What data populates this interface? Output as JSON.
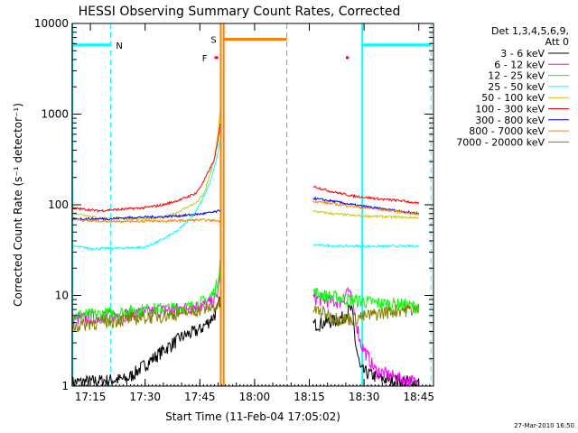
{
  "chart_data": {
    "type": "line",
    "title": "HESSI Observing Summary Count Rates, Corrected",
    "xlabel": "Start Time (11-Feb-04 17:05:02)",
    "ylabel": "Corrected Count Rate (s⁻¹ detector⁻¹)",
    "yscale": "log",
    "xlim": [
      5.0,
      104.0
    ],
    "ylim": [
      1,
      10000
    ],
    "x_units": "minutes after 17:05:02",
    "x_ticks": [
      {
        "label": "17:15",
        "value": 9.97
      },
      {
        "label": "17:30",
        "value": 24.97
      },
      {
        "label": "17:45",
        "value": 39.97
      },
      {
        "label": "18:00",
        "value": 54.97
      },
      {
        "label": "18:15",
        "value": 69.97
      },
      {
        "label": "18:30",
        "value": 84.97
      },
      {
        "label": "18:45",
        "value": 99.97
      }
    ],
    "y_ticks": [
      {
        "label": "1",
        "value": 1
      },
      {
        "label": "10",
        "value": 10
      },
      {
        "label": "100",
        "value": 100
      },
      {
        "label": "1000",
        "value": 1000
      },
      {
        "label": "10000",
        "value": 10000
      }
    ],
    "legend_header": [
      "Det 1,3,4,5,6,9,",
      "Att 0"
    ],
    "legend_position": "right",
    "series": [
      {
        "name": "3 - 6 keV",
        "color": "#000000",
        "x": [
          5,
          20,
          30,
          35,
          40,
          42,
          43.5,
          44.5,
          45,
          45.5
        ],
        "y": [
          1.1,
          1.2,
          2.5,
          3.5,
          4.2,
          5,
          5.8,
          6.5,
          7.5,
          9
        ],
        "x2": [
          71,
          74,
          76,
          78,
          79.5,
          80.5,
          81.5,
          82,
          82.6,
          84,
          90,
          100
        ],
        "y2": [
          4.8,
          5,
          5.2,
          5.5,
          5.8,
          6.8,
          7,
          5.5,
          3,
          1.5,
          1.2,
          1.1
        ]
      },
      {
        "name": "6 - 12 keV",
        "color": "#ff00ff",
        "x": [
          5,
          15,
          25,
          32,
          38,
          42,
          44,
          45,
          45.5
        ],
        "y": [
          5.5,
          6,
          6.5,
          7,
          7.5,
          8,
          9,
          11,
          20
        ],
        "x2": [
          71,
          74,
          77,
          79,
          80.5,
          81.5,
          82.5,
          84,
          88,
          95,
          100
        ],
        "y2": [
          9.5,
          9,
          8.5,
          8.7,
          12,
          9,
          6,
          3,
          1.5,
          1.2,
          1.1
        ]
      },
      {
        "name": "12 - 25 keV",
        "color": "#00ff00",
        "x": [
          5,
          12,
          18,
          25,
          32,
          38,
          42,
          44,
          45,
          45.5
        ],
        "y": [
          6,
          6.2,
          6.5,
          7,
          7.2,
          7.5,
          9,
          11,
          15,
          25
        ],
        "x2": [
          71,
          74,
          78,
          82,
          86,
          90,
          95,
          100
        ],
        "y2": [
          11,
          10,
          9.5,
          9,
          8.5,
          8.2,
          8,
          7.5
        ]
      },
      {
        "name": "25 - 50 keV",
        "color": "#00ffff",
        "x": [
          5,
          10,
          15,
          20,
          25,
          30,
          34,
          38,
          41,
          43,
          44.5,
          45.5
        ],
        "y": [
          35,
          33,
          33,
          33.5,
          34,
          42,
          52,
          75,
          120,
          190,
          310,
          500
        ],
        "x2": [
          71,
          78,
          86,
          94,
          100
        ],
        "y2": [
          36,
          35,
          35,
          35,
          35
        ]
      },
      {
        "name": "50 - 100 keV",
        "color": "#cccc00",
        "x": [
          5,
          12,
          20,
          25,
          30,
          33,
          36,
          39,
          41,
          42.5,
          44,
          45,
          45.5
        ],
        "y": [
          82,
          72,
          70,
          70,
          72,
          80,
          92,
          105,
          130,
          200,
          320,
          650,
          1100
        ],
        "x2": [
          71,
          76,
          82,
          90,
          100
        ],
        "y2": [
          85,
          80,
          76,
          74,
          72
        ]
      },
      {
        "name": "100 - 300 keV",
        "color": "#ff0000",
        "x": [
          5,
          10,
          12,
          20,
          25,
          30,
          35,
          39,
          41,
          42.5,
          44,
          45,
          45.5
        ],
        "y": [
          92,
          88,
          86,
          90,
          93,
          100,
          115,
          135,
          180,
          240,
          320,
          520,
          800
        ],
        "x2": [
          71,
          76,
          82,
          90,
          96,
          100
        ],
        "y2": [
          160,
          140,
          125,
          115,
          110,
          103
        ]
      },
      {
        "name": "300 - 800 keV",
        "color": "#0000ff",
        "x": [
          5,
          10,
          15,
          20,
          25,
          30,
          35,
          40,
          44,
          45,
          45.5
        ],
        "y": [
          70,
          70,
          70,
          72,
          73,
          74,
          76,
          79,
          83,
          85,
          86
        ],
        "x2": [
          71,
          76,
          82,
          88,
          94,
          100
        ],
        "y2": [
          118,
          110,
          100,
          92,
          86,
          80
        ]
      },
      {
        "name": "800 - 7000 keV",
        "color": "#ff8000",
        "x": [
          5,
          10,
          15,
          20,
          25,
          30,
          35,
          40,
          44,
          45.5
        ],
        "y": [
          70,
          66,
          66,
          66,
          66,
          66,
          67,
          68,
          67,
          66
        ],
        "x2": [
          71,
          76,
          82,
          88,
          94,
          100
        ],
        "y2": [
          110,
          103,
          96,
          90,
          85,
          78
        ]
      },
      {
        "name": "7000 - 20000 keV",
        "color": "#808000",
        "x": [
          5,
          10,
          15,
          20,
          25,
          30,
          35,
          40,
          44,
          45.5
        ],
        "y": [
          4.5,
          5,
          5.2,
          5.5,
          5.8,
          6,
          6.5,
          7,
          7.5,
          8
        ],
        "x2": [
          71,
          74,
          78,
          82,
          86,
          90,
          95,
          100
        ],
        "y2": [
          7,
          6.5,
          5.5,
          5.6,
          6,
          6.5,
          7,
          7
        ]
      }
    ],
    "flag_bars": [
      {
        "label": "N",
        "color": "#00ffff",
        "y": 5800,
        "segments": [
          [
            5,
            15.5
          ],
          [
            84.5,
            103.3
          ]
        ]
      },
      {
        "label": "S",
        "color": "#ff8000",
        "y": 6700,
        "segments": [
          [
            46.5,
            63.8
          ]
        ]
      },
      {
        "label": "F",
        "color": "#ff0000",
        "y": 4200,
        "segments": [
          [
            44,
            45
          ],
          [
            80,
            80.8
          ]
        ]
      }
    ],
    "vertical_lines": [
      {
        "x": 5.0,
        "color": "#00ffff",
        "style": "solid"
      },
      {
        "x": 15.5,
        "color": "#00ffff",
        "style": "dashed"
      },
      {
        "x": 45.7,
        "color": "#ff8000",
        "style": "solid"
      },
      {
        "x": 46.5,
        "color": "#ff8000",
        "style": "solid"
      },
      {
        "x": 63.8,
        "color": "#ff8000",
        "style": "dashed"
      },
      {
        "x": 84.5,
        "color": "#00ffff",
        "style": "solid"
      },
      {
        "x": 103.3,
        "color": "#00ffff",
        "style": "dashed"
      }
    ],
    "timestamp": "27-Mar-2010 16:50"
  }
}
